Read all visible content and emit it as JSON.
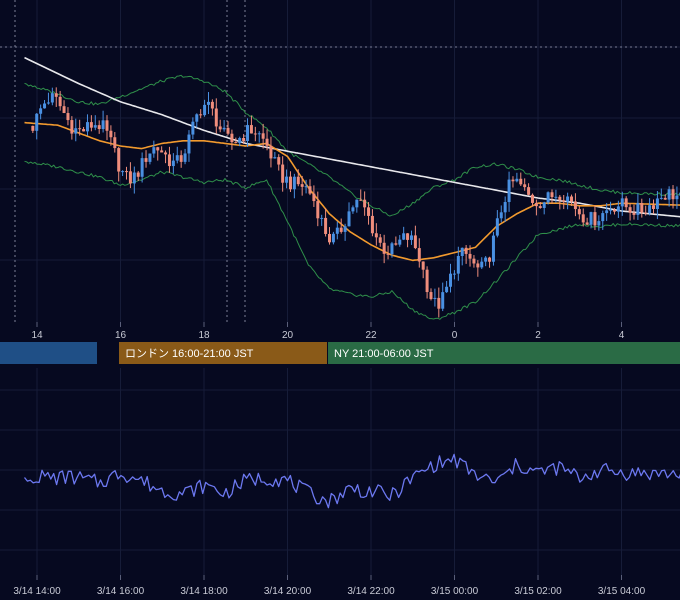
{
  "chart_data": [
    {
      "type": "candlestick",
      "title": "",
      "x_ticks": [
        {
          "label": "14",
          "t": 0
        },
        {
          "label": "16",
          "t": 2
        },
        {
          "label": "18",
          "t": 4
        },
        {
          "label": "20",
          "t": 6
        },
        {
          "label": "22",
          "t": 8
        },
        {
          "label": "0",
          "t": 10
        },
        {
          "label": "2",
          "t": 12
        },
        {
          "label": "4",
          "t": 14
        }
      ],
      "up_color": "#4a90e2",
      "down_color": "#ef8d7c",
      "series": [
        {
          "kind": "moving-average-long",
          "color": "#e8e8ec",
          "points": [
            [
              -0.3,
              44
            ],
            [
              1,
              34
            ],
            [
              2,
              27
            ],
            [
              3,
              22
            ],
            [
              4,
              16
            ],
            [
              5,
              11
            ],
            [
              6,
              8
            ],
            [
              7,
              5
            ],
            [
              8,
              2
            ],
            [
              9,
              -1
            ],
            [
              10,
              -4
            ],
            [
              11,
              -7
            ],
            [
              12,
              -10
            ],
            [
              13,
              -12
            ],
            [
              14,
              -15
            ],
            [
              15.9,
              -18
            ]
          ]
        },
        {
          "kind": "moving-average-short",
          "color": "#f29a2e",
          "points": [
            [
              -0.3,
              19
            ],
            [
              0.5,
              18
            ],
            [
              1,
              15
            ],
            [
              1.5,
              12
            ],
            [
              2,
              10
            ],
            [
              2.5,
              9
            ],
            [
              3,
              11
            ],
            [
              3.5,
              12
            ],
            [
              4,
              12
            ],
            [
              4.5,
              11
            ],
            [
              5,
              10
            ],
            [
              5.5,
              11
            ],
            [
              6,
              6
            ],
            [
              6.5,
              -6
            ],
            [
              7,
              -16
            ],
            [
              7.5,
              -23
            ],
            [
              8,
              -28
            ],
            [
              8.5,
              -32
            ],
            [
              9,
              -34
            ],
            [
              9.5,
              -33
            ],
            [
              10,
              -31
            ],
            [
              10.5,
              -29
            ],
            [
              11,
              -21
            ],
            [
              11.5,
              -16
            ],
            [
              12,
              -12
            ],
            [
              12.5,
              -12
            ],
            [
              13,
              -13
            ],
            [
              13.5,
              -13
            ],
            [
              14,
              -12
            ],
            [
              15.9,
              -13
            ]
          ]
        },
        {
          "kind": "bollinger-upper",
          "color": "#2f8f4a",
          "points": [
            [
              -0.3,
              34
            ],
            [
              0.5,
              30
            ],
            [
              1,
              27
            ],
            [
              1.5,
              26
            ],
            [
              2,
              29
            ],
            [
              2.5,
              32
            ],
            [
              3,
              35
            ],
            [
              3.5,
              37
            ],
            [
              4,
              35
            ],
            [
              4.5,
              31
            ],
            [
              5,
              23
            ],
            [
              5.5,
              17
            ],
            [
              6,
              8
            ],
            [
              6.5,
              3
            ],
            [
              7,
              -2
            ],
            [
              7.5,
              -8
            ],
            [
              8,
              -13
            ],
            [
              8.5,
              -17
            ],
            [
              9,
              -12
            ],
            [
              9.5,
              -6
            ],
            [
              10,
              -3
            ],
            [
              10.5,
              2
            ],
            [
              11,
              3
            ],
            [
              11.5,
              1
            ],
            [
              12,
              -2
            ],
            [
              12.5,
              -3
            ],
            [
              13,
              -5
            ],
            [
              13.5,
              -7
            ],
            [
              14,
              -8
            ],
            [
              15.9,
              -9
            ]
          ]
        },
        {
          "kind": "bollinger-lower",
          "color": "#2f8f4a",
          "points": [
            [
              -0.3,
              4
            ],
            [
              0.5,
              2
            ],
            [
              1,
              0
            ],
            [
              1.5,
              -2
            ],
            [
              2,
              -5
            ],
            [
              2.5,
              -3
            ],
            [
              3,
              0
            ],
            [
              3.5,
              -2
            ],
            [
              4,
              -4
            ],
            [
              4.5,
              -3
            ],
            [
              5,
              -6
            ],
            [
              5.5,
              -3
            ],
            [
              6,
              -19
            ],
            [
              6.5,
              -36
            ],
            [
              7,
              -45
            ],
            [
              7.5,
              -47
            ],
            [
              8,
              -48
            ],
            [
              8.5,
              -46
            ],
            [
              9,
              -53
            ],
            [
              9.5,
              -57
            ],
            [
              10,
              -54
            ],
            [
              10.5,
              -50
            ],
            [
              11,
              -42
            ],
            [
              11.5,
              -33
            ],
            [
              12,
              -24
            ],
            [
              12.5,
              -22
            ],
            [
              13,
              -20
            ],
            [
              13.5,
              -21
            ],
            [
              14,
              -20
            ],
            [
              15.9,
              -21
            ]
          ]
        },
        {
          "kind": "oscillator",
          "color": "#6c78f0",
          "points": [
            [
              -0.3,
              48
            ],
            [
              0.5,
              47
            ],
            [
              1,
              47
            ],
            [
              1.5,
              45
            ],
            [
              2,
              49
            ],
            [
              2.5,
              46
            ],
            [
              3,
              42
            ],
            [
              3.5,
              41
            ],
            [
              4,
              44
            ],
            [
              4.5,
              41
            ],
            [
              5,
              46
            ],
            [
              5.5,
              47
            ],
            [
              6,
              46
            ],
            [
              6.5,
              41
            ],
            [
              7,
              38
            ],
            [
              7.5,
              43
            ],
            [
              8,
              42
            ],
            [
              8.5,
              40
            ],
            [
              9,
              47
            ],
            [
              9.5,
              52
            ],
            [
              10,
              54
            ],
            [
              10.5,
              48
            ],
            [
              11,
              45
            ],
            [
              11.5,
              52
            ],
            [
              12,
              49
            ],
            [
              12.5,
              51
            ],
            [
              13,
              47
            ],
            [
              13.5,
              50
            ],
            [
              14,
              49
            ],
            [
              15.9,
              48
            ]
          ]
        }
      ]
    }
  ],
  "sessions": [
    {
      "label": "",
      "color": "#1f4f86"
    },
    {
      "label": "ロンドン 16:00-21:00 JST",
      "color": "#8a5a18"
    },
    {
      "label": "NY 21:00-06:00 JST",
      "color": "#2a6b45"
    }
  ],
  "bottom_axis_ticks": [
    "3/14 14:00",
    "3/14 16:00",
    "3/14 18:00",
    "3/14 20:00",
    "3/14 22:00",
    "3/15 00:00",
    "3/15 02:00",
    "3/15 04:00"
  ]
}
